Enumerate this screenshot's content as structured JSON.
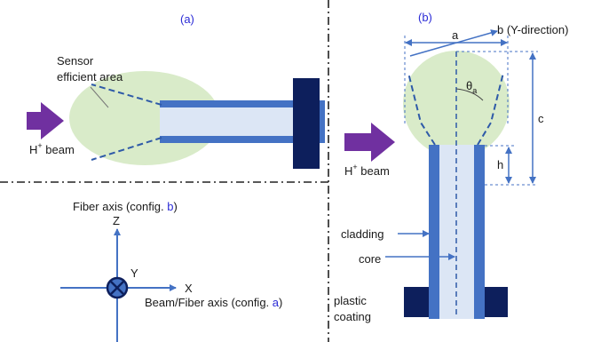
{
  "panel_a": {
    "label": "(a)",
    "sensor_line1": "Sensor",
    "sensor_line2": "efficient area",
    "beam_base": "H",
    "beam_sup": "+",
    "beam_rest": " beam"
  },
  "panel_b": {
    "label": "(b)",
    "dim_a": "a",
    "dim_b": "b (Y-direction)",
    "dim_c": "c",
    "dim_h": "h",
    "theta": "θ",
    "theta_sub": "a",
    "beam_base": "H",
    "beam_sup": "+",
    "beam_rest": " beam",
    "cladding": "cladding",
    "core": "core",
    "plastic1": "plastic",
    "plastic2": "coating"
  },
  "axes": {
    "fiber_axis_text": "Fiber axis (config. ",
    "fiber_axis_config": "b",
    "fiber_axis_close": ")",
    "z": "Z",
    "y": "Y",
    "x": "X",
    "beam_axis_text": "Beam/Fiber axis (config. ",
    "beam_axis_config": "a",
    "beam_axis_close": ")"
  },
  "colors": {
    "sensor_area": "#d9ebc9",
    "cladding": "#4472c4",
    "core": "#dce6f5",
    "coating": "#0d1f5c",
    "beam_arrow": "#7030a0",
    "label_blue": "#2b2bd6"
  }
}
